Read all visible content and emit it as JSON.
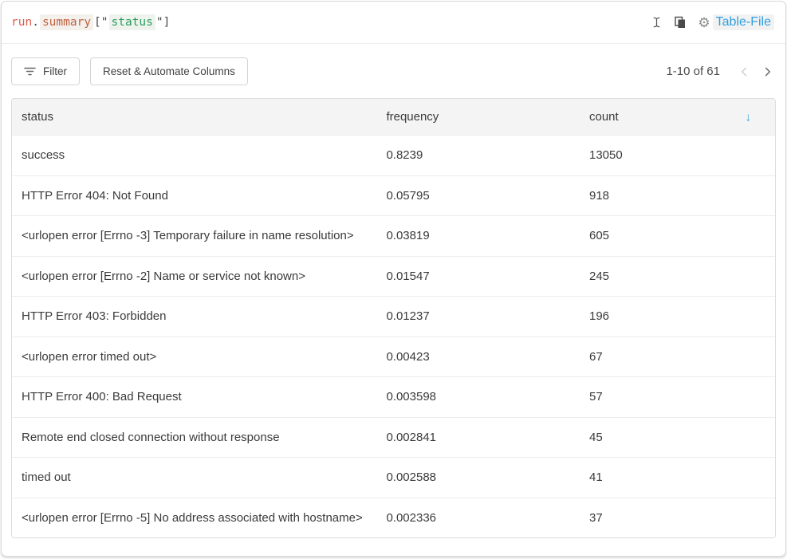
{
  "panel": {
    "code_bar": {
      "expression_tokens": [
        {
          "type": "object",
          "text": "run"
        },
        {
          "type": "punct",
          "text": "."
        },
        {
          "type": "attr",
          "text": "summary"
        },
        {
          "type": "punct",
          "text": "["
        },
        {
          "type": "quote",
          "text": "\""
        },
        {
          "type": "string",
          "text": "status"
        },
        {
          "type": "quote",
          "text": "\""
        },
        {
          "type": "punct",
          "text": "]"
        }
      ],
      "panel_type_label": "Table-File",
      "icons": [
        "text-cursor-icon",
        "copy-icon",
        "gear-icon"
      ]
    },
    "toolbar": {
      "filter_label": "Filter",
      "reset_label": "Reset & Automate Columns",
      "pagination": {
        "range_label": "1-10 of 61"
      }
    },
    "table": {
      "columns": [
        {
          "key": "status",
          "label": "status"
        },
        {
          "key": "frequency",
          "label": "frequency"
        },
        {
          "key": "count",
          "label": "count"
        }
      ],
      "sort": {
        "column": "count",
        "direction": "desc",
        "icon": "↓"
      },
      "rows": [
        {
          "status": "success",
          "frequency": "0.8239",
          "count": "13050"
        },
        {
          "status": "HTTP Error 404: Not Found",
          "frequency": "0.05795",
          "count": "918"
        },
        {
          "status": "<urlopen error [Errno -3] Temporary failure in name resolution>",
          "frequency": "0.03819",
          "count": "605"
        },
        {
          "status": "<urlopen error [Errno -2] Name or service not known>",
          "frequency": "0.01547",
          "count": "245"
        },
        {
          "status": "HTTP Error 403: Forbidden",
          "frequency": "0.01237",
          "count": "196"
        },
        {
          "status": "<urlopen error timed out>",
          "frequency": "0.00423",
          "count": "67"
        },
        {
          "status": "HTTP Error 400: Bad Request",
          "frequency": "0.003598",
          "count": "57"
        },
        {
          "status": "Remote end closed connection without response",
          "frequency": "0.002841",
          "count": "45"
        },
        {
          "status": "timed out",
          "frequency": "0.002588",
          "count": "41"
        },
        {
          "status": "<urlopen error [Errno -5] No address associated with hostname>",
          "frequency": "0.002336",
          "count": "37"
        }
      ]
    },
    "colors": {
      "accent_blue": "#2f9fe0",
      "token_object": "#de5b49",
      "token_attr": "#bf6141",
      "token_string": "#2b9c5c",
      "header_bg": "#f4f4f4"
    }
  }
}
